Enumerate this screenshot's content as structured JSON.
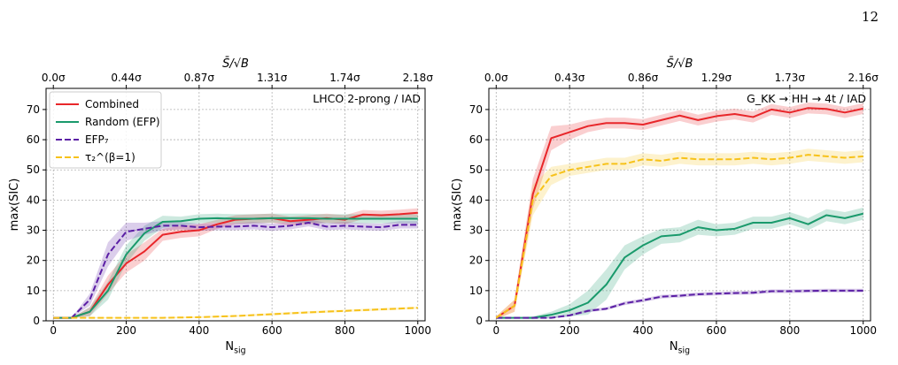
{
  "page_number": "12",
  "chart_data": [
    {
      "type": "line",
      "annotation": "LHCO 2-prong / IAD",
      "xlabel": "N_sig",
      "ylabel": "max(SIC)",
      "top_xlabel": "S̄/√B",
      "xlim": [
        -20,
        1020
      ],
      "ylim": [
        0,
        77
      ],
      "xticks": [
        0,
        200,
        400,
        600,
        800,
        1000
      ],
      "yticks": [
        0,
        10,
        20,
        30,
        40,
        50,
        60,
        70
      ],
      "top_ticks": [
        {
          "x": 0,
          "label": "0.0σ"
        },
        {
          "x": 200,
          "label": "0.44σ"
        },
        {
          "x": 400,
          "label": "0.87σ"
        },
        {
          "x": 600,
          "label": "1.31σ"
        },
        {
          "x": 800,
          "label": "1.74σ"
        },
        {
          "x": 1000,
          "label": "2.18σ"
        }
      ],
      "grid": true,
      "legend": "top-left",
      "series": [
        {
          "name": "Combined",
          "color": "#e8262a",
          "dash": "solid",
          "x": [
            0,
            50,
            100,
            150,
            200,
            250,
            300,
            350,
            400,
            450,
            500,
            550,
            600,
            650,
            700,
            750,
            800,
            850,
            900,
            950,
            1000
          ],
          "y": [
            1,
            1,
            3,
            12,
            19,
            23,
            28.5,
            29.5,
            30,
            32,
            33.5,
            33.8,
            34,
            33,
            33.5,
            34,
            33.5,
            35.2,
            35,
            35.3,
            35.8
          ],
          "band": [
            0,
            0,
            1.5,
            3,
            3,
            3,
            2,
            2,
            2,
            1.5,
            1.5,
            1.5,
            1.5,
            1.5,
            1.5,
            1.5,
            1.5,
            1.5,
            1.5,
            1.5,
            1.5
          ]
        },
        {
          "name": "Random (EFP)",
          "color": "#1a9a6c",
          "dash": "solid",
          "x": [
            0,
            50,
            100,
            150,
            200,
            250,
            300,
            350,
            400,
            450,
            500,
            550,
            600,
            650,
            700,
            750,
            800,
            850,
            900,
            950,
            1000
          ],
          "y": [
            1,
            1,
            3,
            10,
            22,
            29,
            32.8,
            33,
            33.8,
            34,
            33.8,
            33.8,
            34,
            34,
            34,
            33.8,
            33.8,
            33.8,
            33.8,
            33.8,
            33.8
          ],
          "band": [
            0,
            0,
            1.5,
            3,
            3,
            2.5,
            2,
            1.5,
            1.5,
            1.5,
            1.5,
            1.5,
            1.5,
            1.5,
            1.5,
            1.5,
            1.5,
            1.5,
            1.5,
            1.5,
            1.5
          ]
        },
        {
          "name": "EFP₇",
          "color": "#5b1fa5",
          "dash": "dashed",
          "x": [
            0,
            50,
            100,
            150,
            200,
            250,
            300,
            350,
            400,
            450,
            500,
            550,
            600,
            650,
            700,
            750,
            800,
            850,
            900,
            950,
            1000
          ],
          "y": [
            1,
            1,
            7,
            22,
            29.5,
            30.5,
            31.5,
            31.5,
            31,
            31.2,
            31.2,
            31.5,
            31,
            31.5,
            32.5,
            31.2,
            31.5,
            31.2,
            31,
            31.8,
            31.8
          ],
          "band": [
            0,
            0,
            2,
            4,
            3,
            2,
            1.5,
            1.2,
            1.2,
            1.2,
            1.2,
            1.2,
            1.2,
            1.2,
            1.2,
            1.2,
            1.2,
            1.2,
            1.2,
            1.2,
            1.2
          ]
        },
        {
          "name": "τ₂^(β=1)",
          "color": "#f7c21a",
          "dash": "dashed",
          "x": [
            0,
            100,
            200,
            300,
            400,
            500,
            600,
            700,
            800,
            900,
            1000
          ],
          "y": [
            1,
            1,
            1,
            1,
            1.2,
            1.6,
            2.2,
            2.8,
            3.3,
            3.8,
            4.3
          ],
          "band": [
            0.2,
            0.2,
            0.2,
            0.2,
            0.3,
            0.3,
            0.4,
            0.4,
            0.4,
            0.4,
            0.4
          ]
        }
      ]
    },
    {
      "type": "line",
      "annotation": "G_KK → HH → 4t / IAD",
      "xlabel": "N_sig",
      "ylabel": "max(SIC)",
      "top_xlabel": "S̄/√B",
      "xlim": [
        -20,
        1020
      ],
      "ylim": [
        0,
        77
      ],
      "xticks": [
        0,
        200,
        400,
        600,
        800,
        1000
      ],
      "yticks": [
        0,
        10,
        20,
        30,
        40,
        50,
        60,
        70
      ],
      "top_ticks": [
        {
          "x": 0,
          "label": "0.0σ"
        },
        {
          "x": 200,
          "label": "0.43σ"
        },
        {
          "x": 400,
          "label": "0.86σ"
        },
        {
          "x": 600,
          "label": "1.29σ"
        },
        {
          "x": 800,
          "label": "1.73σ"
        },
        {
          "x": 1000,
          "label": "2.16σ"
        }
      ],
      "grid": true,
      "series": [
        {
          "name": "Combined",
          "color": "#e8262a",
          "dash": "solid",
          "x": [
            0,
            50,
            100,
            150,
            200,
            250,
            300,
            350,
            400,
            450,
            500,
            550,
            600,
            650,
            700,
            750,
            800,
            850,
            900,
            950,
            1000
          ],
          "y": [
            1,
            5,
            42,
            60.5,
            62.5,
            64.5,
            65.5,
            65.5,
            65,
            66.5,
            68,
            66.5,
            67.8,
            68.5,
            67.5,
            70,
            69,
            70.5,
            70.2,
            69,
            70.3
          ],
          "band": [
            0.5,
            2,
            5,
            4,
            2.5,
            2,
            1.8,
            1.8,
            1.8,
            1.8,
            1.8,
            1.8,
            1.8,
            1.8,
            1.8,
            1.8,
            1.8,
            1.8,
            1.8,
            1.8,
            1.8
          ]
        },
        {
          "name": "Random (EFP)",
          "color": "#1a9a6c",
          "dash": "solid",
          "x": [
            0,
            50,
            100,
            150,
            200,
            250,
            300,
            350,
            400,
            450,
            500,
            550,
            600,
            650,
            700,
            750,
            800,
            850,
            900,
            950,
            1000
          ],
          "y": [
            1,
            1,
            1,
            2,
            3.5,
            6,
            12,
            21,
            25,
            28,
            28.5,
            31,
            30,
            30.5,
            32.5,
            32.5,
            34,
            32,
            35,
            34,
            35.5
          ],
          "band": [
            0,
            0,
            0.5,
            1,
            2,
            4,
            5,
            4,
            3,
            2.5,
            2.5,
            2.5,
            2,
            2,
            2,
            2,
            2,
            2,
            2,
            2,
            2
          ]
        },
        {
          "name": "EFP₇",
          "color": "#5b1fa5",
          "dash": "dashed",
          "x": [
            0,
            50,
            100,
            150,
            200,
            250,
            300,
            350,
            400,
            450,
            500,
            550,
            600,
            650,
            700,
            750,
            800,
            850,
            900,
            950,
            1000
          ],
          "y": [
            1,
            1,
            1,
            1,
            1.8,
            3.3,
            4,
            5.8,
            6.8,
            8,
            8.3,
            8.8,
            9,
            9.2,
            9.3,
            9.8,
            9.8,
            9.9,
            10,
            10,
            10
          ],
          "band": [
            0.2,
            0.2,
            0.2,
            0.3,
            0.4,
            0.5,
            0.5,
            0.6,
            0.6,
            0.6,
            0.6,
            0.6,
            0.6,
            0.6,
            0.6,
            0.6,
            0.6,
            0.6,
            0.6,
            0.6,
            0.6
          ]
        },
        {
          "name": "τ₂^(β=1)",
          "color": "#f7c21a",
          "dash": "dashed",
          "x": [
            0,
            50,
            100,
            150,
            200,
            250,
            300,
            350,
            400,
            450,
            500,
            550,
            600,
            650,
            700,
            750,
            800,
            850,
            900,
            950,
            1000
          ],
          "y": [
            1,
            5,
            40,
            48,
            50,
            51,
            52,
            52,
            53.5,
            53,
            54,
            53.5,
            53.5,
            53.5,
            54,
            53.5,
            54,
            55,
            54.5,
            54,
            54.5
          ],
          "band": [
            0.5,
            2,
            5,
            3,
            2,
            2,
            2,
            2,
            2,
            2,
            2,
            2,
            2,
            2,
            2,
            2,
            2,
            2,
            2,
            2,
            2
          ]
        }
      ]
    }
  ]
}
